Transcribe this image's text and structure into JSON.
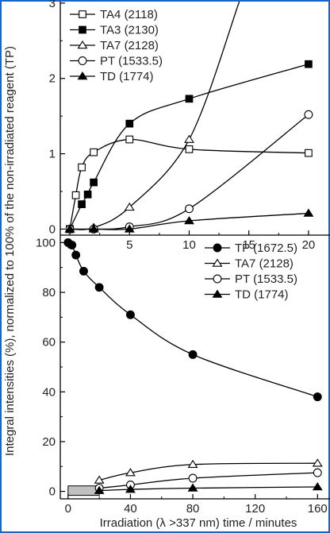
{
  "frame_color": "#1466c8",
  "y_axis_title": "Integral intensities (%), normalized to 100% of the non-irradiated reagent (TP)",
  "x_axis_title": "Irradiation (λ >337 nm) time  /  minutes",
  "chart_data": [
    {
      "type": "line",
      "panel": "top",
      "title": "",
      "xlabel": "",
      "ylabel": "",
      "xlim": [
        -0.8,
        21.8
      ],
      "ylim": [
        -0.08,
        3.02
      ],
      "x_ticks": [
        0,
        5,
        10,
        15,
        20
      ],
      "y_ticks": [
        0,
        1,
        2,
        3
      ],
      "grid": false,
      "legend_placement": "top-left",
      "series": [
        {
          "name": "TA4 (2118)",
          "marker": "square-open",
          "x": [
            0,
            0.5,
            1,
            2,
            5,
            10,
            20
          ],
          "y": [
            0,
            0.45,
            0.82,
            1.02,
            1.19,
            1.06,
            1.01
          ]
        },
        {
          "name": "TA3 (2130)",
          "marker": "square-filled",
          "x": [
            0,
            1,
            1.5,
            2,
            5,
            10,
            20
          ],
          "y": [
            0,
            0.33,
            0.46,
            0.62,
            1.4,
            1.73,
            2.19
          ]
        },
        {
          "name": "TA7 (2128)",
          "marker": "triangle-open",
          "x": [
            0,
            2,
            5,
            10
          ],
          "y": [
            0,
            0.02,
            0.29,
            1.19
          ],
          "curve_continues_to": [
            14.2,
            3.02
          ]
        },
        {
          "name": "PT (1533.5)",
          "marker": "circle-open",
          "x": [
            0,
            2,
            5,
            10,
            20
          ],
          "y": [
            0,
            0,
            0.03,
            0.27,
            1.52
          ]
        },
        {
          "name": "TD (1774)",
          "marker": "triangle-filled",
          "x": [
            0,
            2,
            5,
            10,
            20
          ],
          "y": [
            0,
            0,
            0,
            0.11,
            0.21
          ]
        }
      ]
    },
    {
      "type": "line",
      "panel": "bottom",
      "title": "",
      "xlabel": "Irradiation (λ >337 nm) time  /  minutes",
      "ylabel": "",
      "xlim": [
        -5,
        168
      ],
      "ylim": [
        -3,
        103
      ],
      "x_ticks": [
        0,
        40,
        80,
        120,
        160
      ],
      "y_ticks": [
        0,
        20,
        40,
        60,
        80,
        100
      ],
      "grid": false,
      "legend_placement": "top-right",
      "shaded_region_x": [
        0,
        20
      ],
      "series": [
        {
          "name": "TP (1672.5)",
          "marker": "circle-filled",
          "x": [
            0,
            2.5,
            5,
            10,
            20,
            40,
            80,
            160
          ],
          "y": [
            100,
            99,
            95,
            88.5,
            82,
            71,
            55,
            38
          ]
        },
        {
          "name": "TA7 (2128)",
          "marker": "triangle-open",
          "x": [
            20,
            40,
            80,
            160
          ],
          "y": [
            4.5,
            7.5,
            10.8,
            11.3
          ]
        },
        {
          "name": "PT (1533.5)",
          "marker": "circle-open",
          "x": [
            20,
            40,
            80,
            160
          ],
          "y": [
            1.3,
            2.6,
            5.3,
            7.5
          ]
        },
        {
          "name": "TD (1774)",
          "marker": "triangle-filled",
          "x": [
            20,
            40,
            80,
            160
          ],
          "y": [
            0.3,
            0.8,
            1.3,
            1.8
          ]
        }
      ]
    }
  ]
}
